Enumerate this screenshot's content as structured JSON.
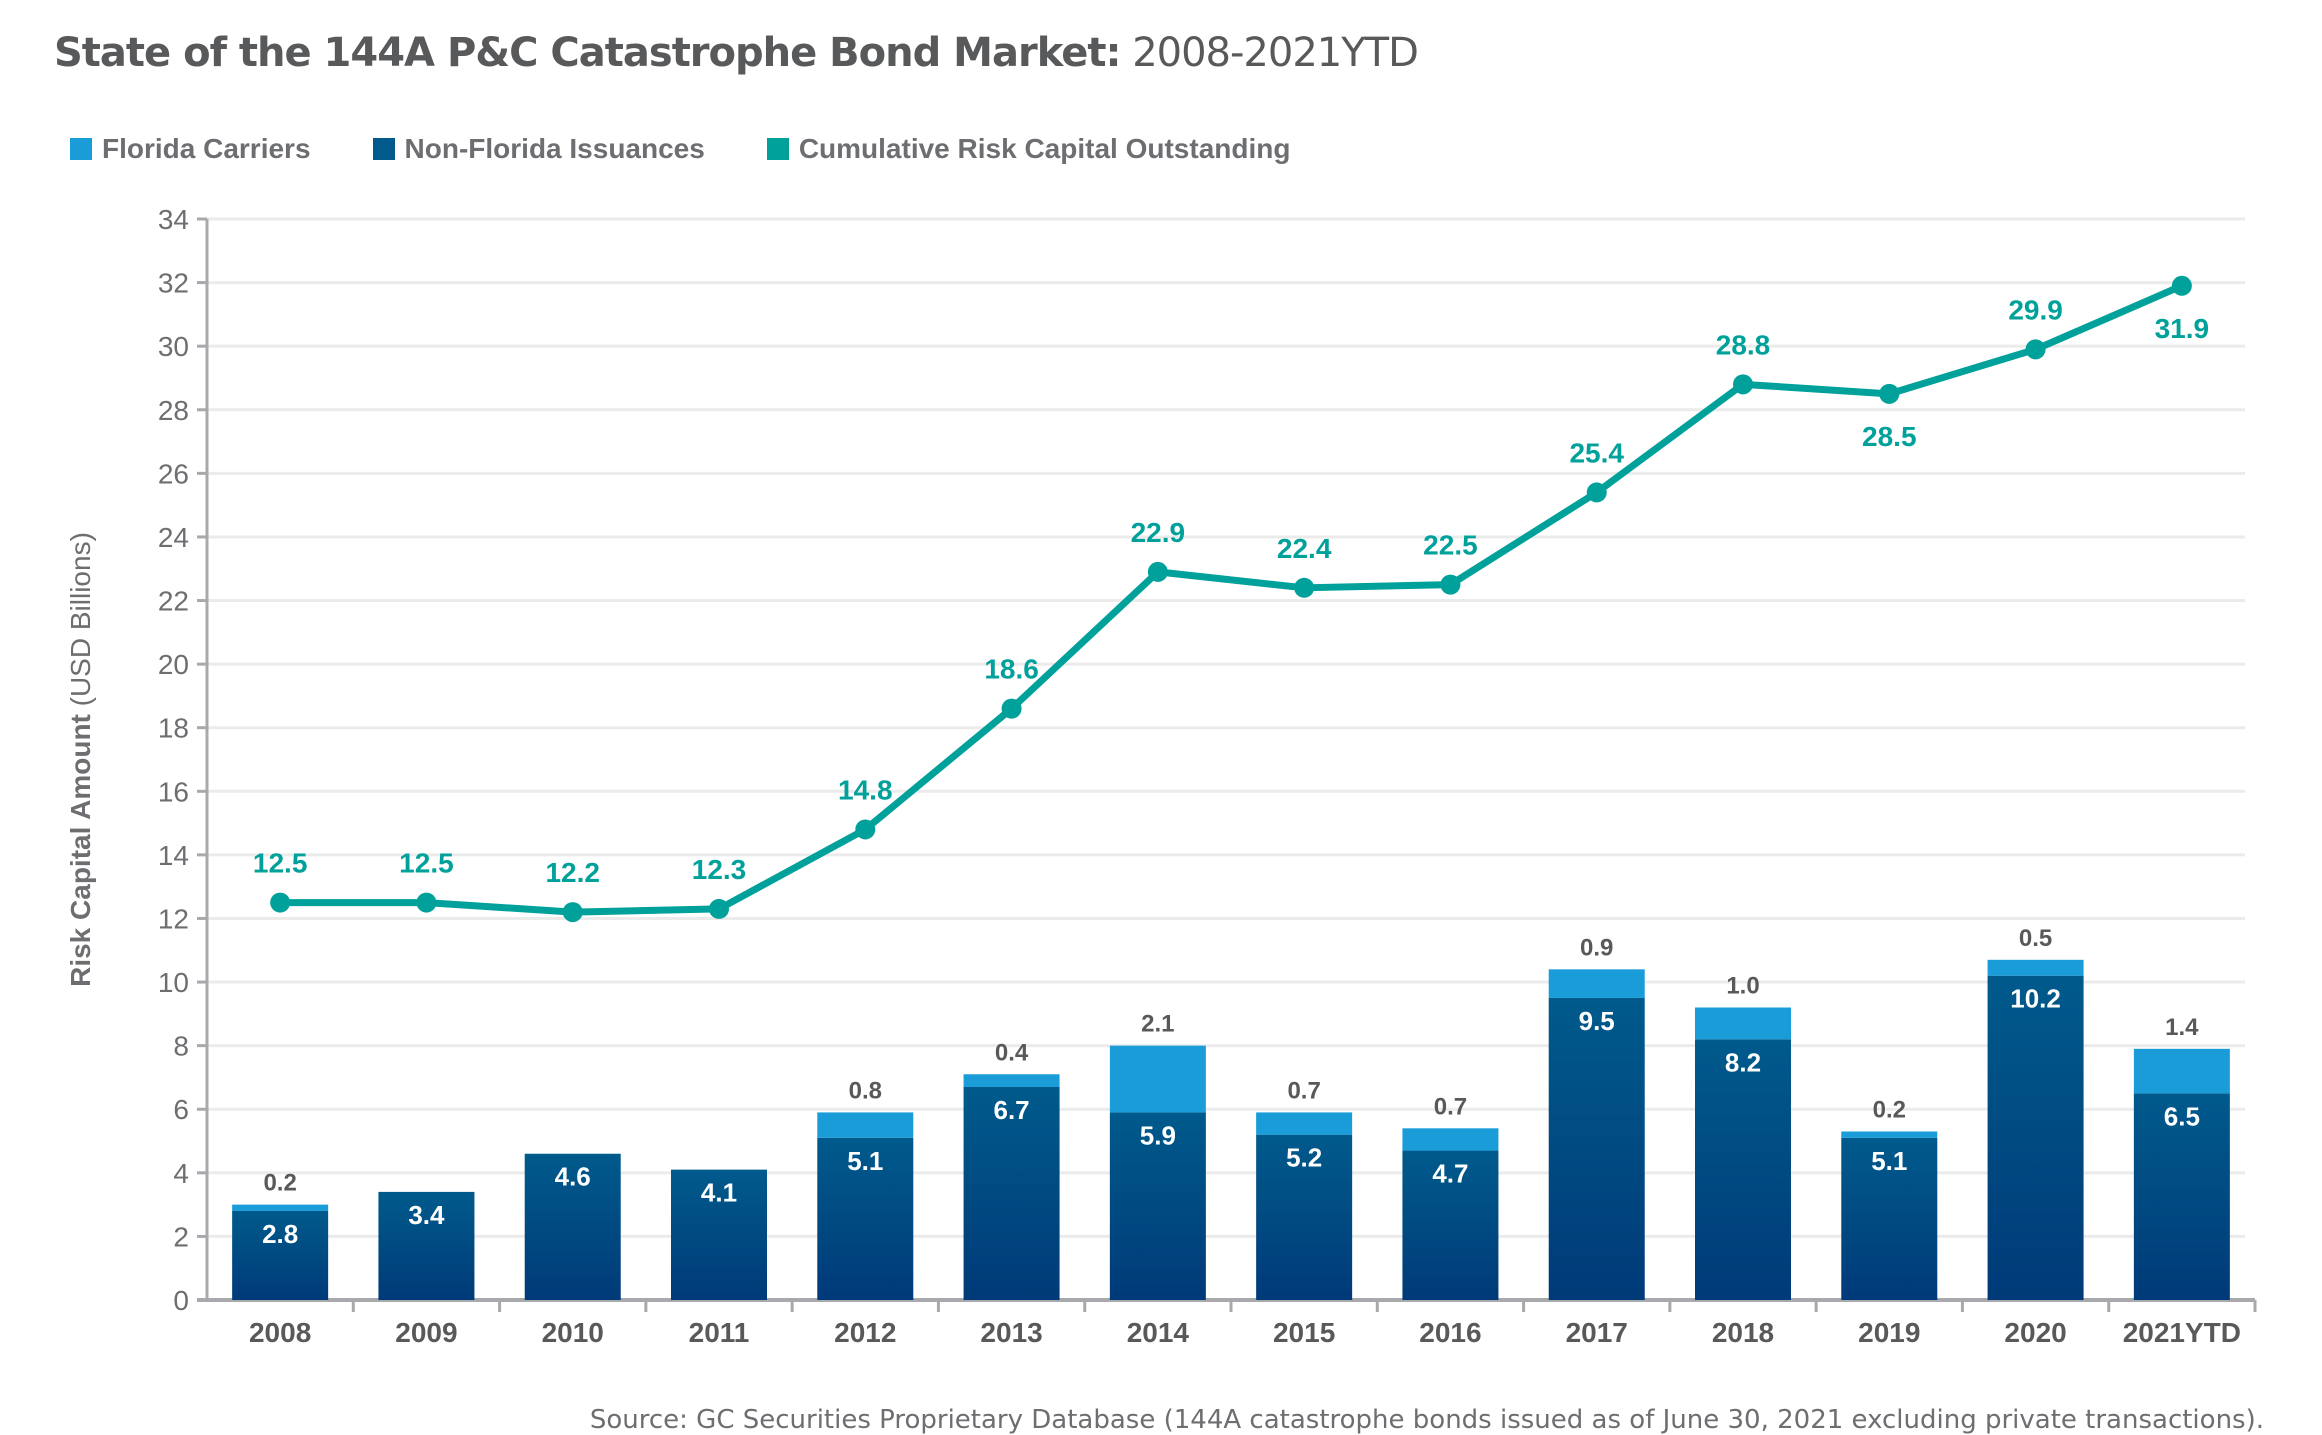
{
  "title_bold": "State of the 144A P&C Catastrophe Bond Market:",
  "title_rest": " 2008-2021YTD",
  "source": "Source: GC Securities Proprietary Database (144A catastrophe bonds issued as of June 30, 2021 excluding private transactions).",
  "colors": {
    "florida": "#1a9cd8",
    "non_florida_top": "#005a8c",
    "non_florida_bottom": "#003a78",
    "cumulative": "#00a19a",
    "axis": "#a7a9ac",
    "grid": "#ebebeb",
    "text": "#58595b"
  },
  "chart_data": {
    "type": "bar+line",
    "title": "State of the 144A P&C Catastrophe Bond Market: 2008-2021YTD",
    "ylabel": "Risk Capital Amount",
    "ylabel_unit": "(USD Billions)",
    "ylim": [
      0,
      34
    ],
    "yticks": [
      0,
      2,
      4,
      6,
      8,
      10,
      12,
      14,
      16,
      18,
      20,
      22,
      24,
      26,
      28,
      30,
      32,
      34
    ],
    "grid": true,
    "legend_placement": "top-left",
    "categories": [
      "2008",
      "2009",
      "2010",
      "2011",
      "2012",
      "2013",
      "2014",
      "2015",
      "2016",
      "2017",
      "2018",
      "2019",
      "2020",
      "2021YTD"
    ],
    "series": [
      {
        "name": "Non-Florida Issuances",
        "kind": "stacked-bar",
        "values": [
          2.8,
          3.4,
          4.6,
          4.1,
          5.1,
          6.7,
          5.9,
          5.2,
          4.7,
          9.5,
          8.2,
          5.1,
          10.2,
          6.5
        ]
      },
      {
        "name": "Florida Carriers",
        "kind": "stacked-bar",
        "values": [
          0.2,
          null,
          null,
          null,
          0.8,
          0.4,
          2.1,
          0.7,
          0.7,
          0.9,
          1.0,
          0.2,
          0.5,
          1.4
        ]
      },
      {
        "name": "Cumulative Risk Capital Outstanding",
        "kind": "line",
        "values": [
          12.5,
          12.5,
          12.2,
          12.3,
          14.8,
          18.6,
          22.9,
          22.4,
          22.5,
          25.4,
          28.8,
          28.5,
          29.9,
          31.9
        ],
        "labels": [
          "12.5",
          "12.5",
          "12.2",
          "12.3",
          "14.8",
          "18.6",
          "22.9",
          "22.4",
          "22.5",
          "25.4",
          "28.8",
          "28.5",
          "29.9",
          "31.9"
        ]
      }
    ]
  }
}
